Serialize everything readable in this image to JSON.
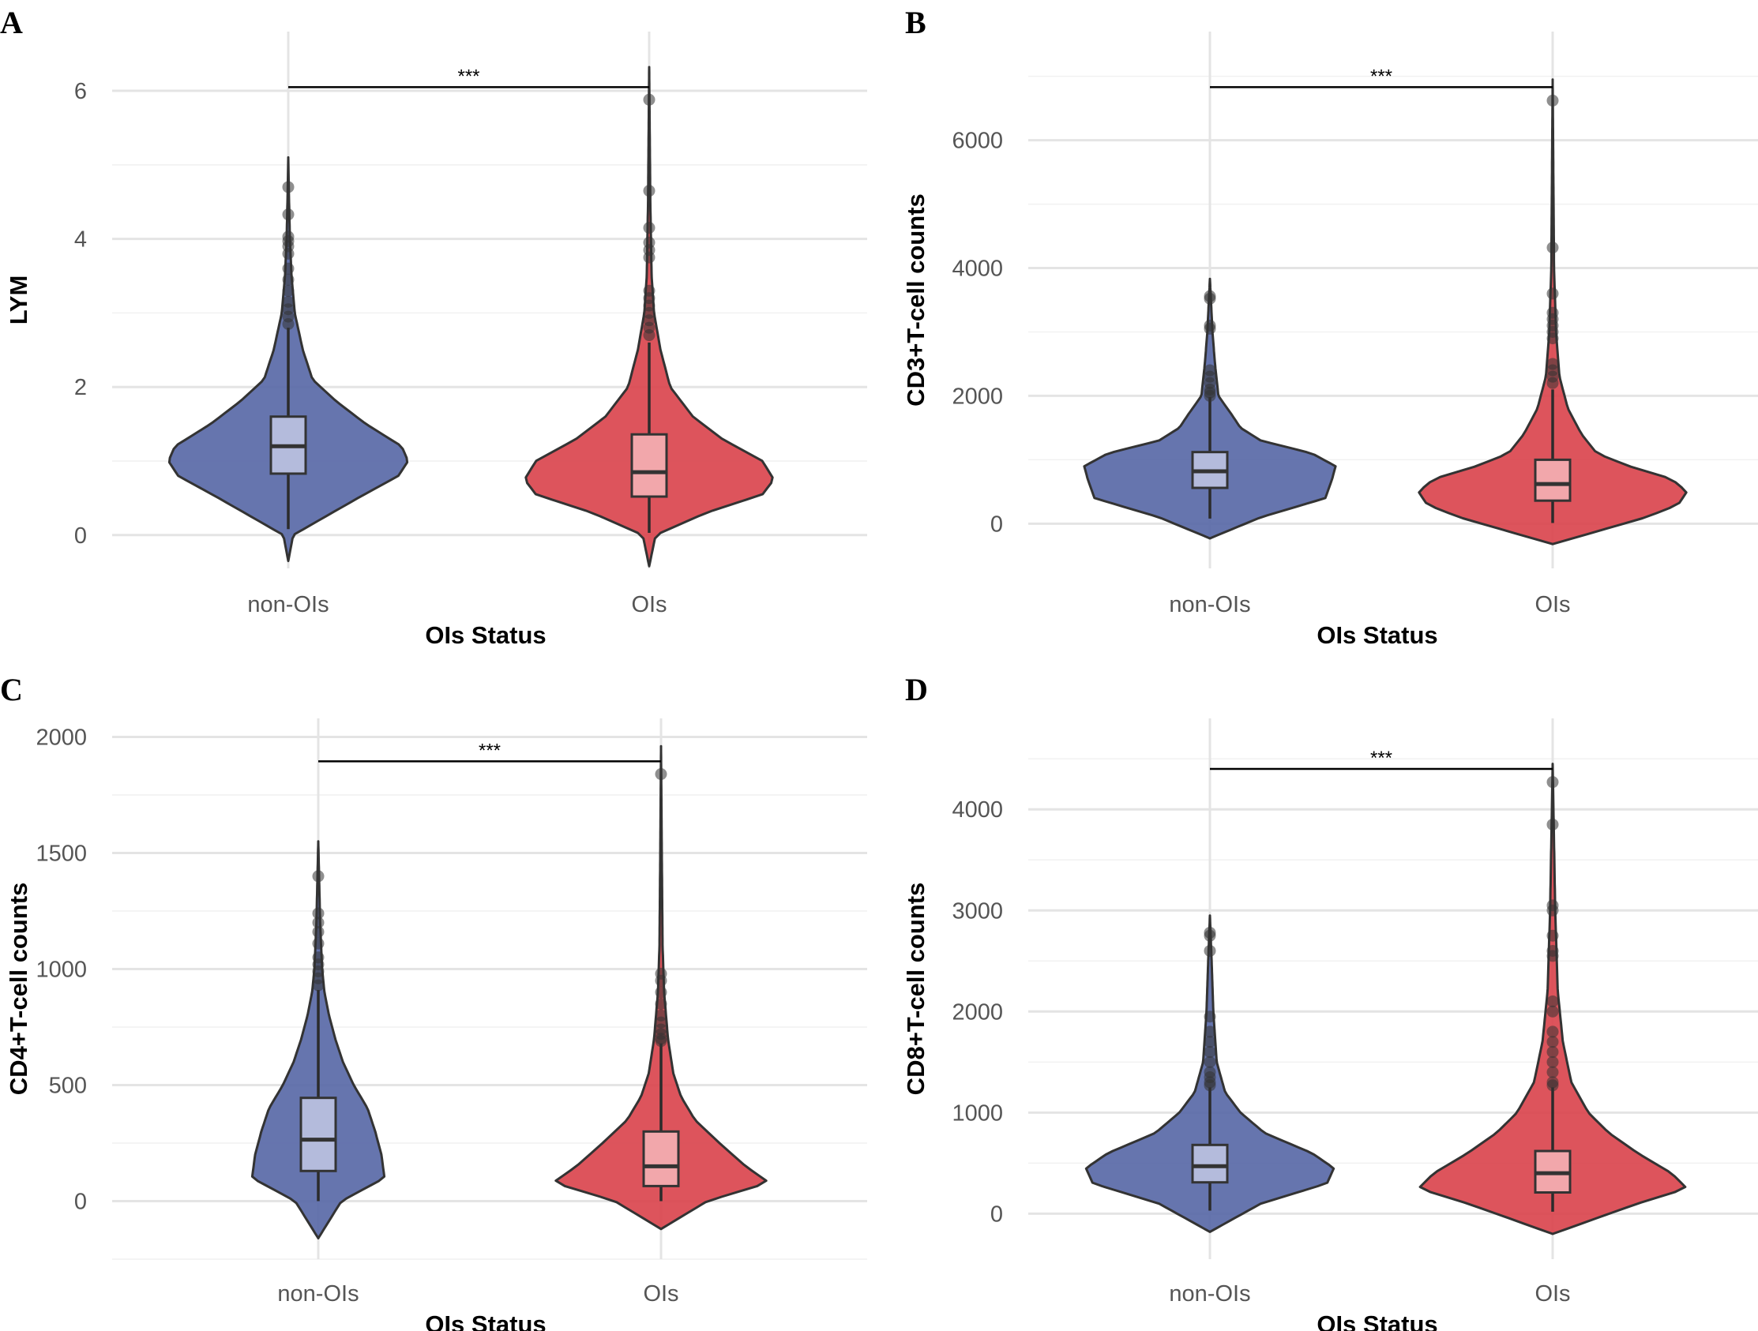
{
  "chart_data": [
    {
      "panel": "A",
      "type": "violin",
      "xlabel": "OIs Status",
      "ylabel": "LYM",
      "categories": [
        "non-OIs",
        "OIs"
      ],
      "yticks": [
        0,
        2,
        4,
        6
      ],
      "ylim": [
        -0.45,
        6.8
      ],
      "colors": [
        "#5566a5",
        "#d9414a"
      ],
      "box_colors": [
        "#b4bbdc",
        "#f2a7ab"
      ],
      "significance": {
        "label": "***",
        "y": 6.05
      },
      "groups": [
        {
          "name": "non-OIs",
          "min": 0.08,
          "q1": 0.83,
          "median": 1.2,
          "q3": 1.6,
          "whisker_high": 2.8,
          "outliers": [
            2.85,
            2.95,
            3.05,
            3.15,
            3.3,
            3.45,
            3.6,
            3.8,
            3.9,
            3.97,
            4.03,
            4.33,
            4.7
          ],
          "vmin": -0.35,
          "vmax": 5.1,
          "density": [
            [
              -0.35,
              0.0
            ],
            [
              0.0,
              0.03
            ],
            [
              0.5,
              0.43
            ],
            [
              0.8,
              0.68
            ],
            [
              1.0,
              0.74
            ],
            [
              1.2,
              0.7
            ],
            [
              1.5,
              0.48
            ],
            [
              1.8,
              0.3
            ],
            [
              2.1,
              0.15
            ],
            [
              2.5,
              0.09
            ],
            [
              3.0,
              0.04
            ],
            [
              3.5,
              0.02
            ],
            [
              4.0,
              0.01
            ],
            [
              4.5,
              0.005
            ],
            [
              5.1,
              0.0
            ]
          ]
        },
        {
          "name": "OIs",
          "min": 0.03,
          "q1": 0.52,
          "median": 0.85,
          "q3": 1.36,
          "whisker_high": 2.6,
          "outliers": [
            2.7,
            2.8,
            2.9,
            3.0,
            3.1,
            3.2,
            3.3,
            3.75,
            3.85,
            3.95,
            4.15,
            4.65,
            5.88
          ],
          "vmin": -0.42,
          "vmax": 6.32,
          "density": [
            [
              -0.42,
              0.0
            ],
            [
              0.0,
              0.04
            ],
            [
              0.3,
              0.35
            ],
            [
              0.55,
              0.7
            ],
            [
              0.75,
              0.77
            ],
            [
              1.0,
              0.7
            ],
            [
              1.3,
              0.45
            ],
            [
              1.6,
              0.27
            ],
            [
              2.0,
              0.13
            ],
            [
              2.5,
              0.07
            ],
            [
              3.0,
              0.03
            ],
            [
              3.5,
              0.015
            ],
            [
              4.5,
              0.007
            ],
            [
              6.32,
              0.0
            ]
          ]
        }
      ]
    },
    {
      "panel": "B",
      "type": "violin",
      "xlabel": "OIs Status",
      "ylabel": "CD3+T-cell counts",
      "categories": [
        "non-OIs",
        "OIs"
      ],
      "yticks": [
        0,
        2000,
        4000,
        6000
      ],
      "ylim": [
        -700,
        7700
      ],
      "colors": [
        "#5566a5",
        "#d9414a"
      ],
      "box_colors": [
        "#b4bbdc",
        "#f2a7ab"
      ],
      "significance": {
        "label": "***",
        "y": 6830
      },
      "groups": [
        {
          "name": "non-OIs",
          "min": 80,
          "q1": 560,
          "median": 820,
          "q3": 1120,
          "whisker_high": 1980,
          "outliers": [
            2000,
            2050,
            2100,
            2200,
            2300,
            2400,
            3050,
            3100,
            3520,
            3560
          ],
          "vmin": -230,
          "vmax": 3830,
          "density": [
            [
              -230,
              0.0
            ],
            [
              100,
              0.3
            ],
            [
              400,
              0.68
            ],
            [
              700,
              0.72
            ],
            [
              900,
              0.74
            ],
            [
              1100,
              0.6
            ],
            [
              1300,
              0.3
            ],
            [
              1500,
              0.18
            ],
            [
              1700,
              0.13
            ],
            [
              2000,
              0.05
            ],
            [
              2500,
              0.03
            ],
            [
              3000,
              0.015
            ],
            [
              3830,
              0.0
            ]
          ]
        },
        {
          "name": "OIs",
          "min": 10,
          "q1": 360,
          "median": 620,
          "q3": 1000,
          "whisker_high": 2100,
          "outliers": [
            2200,
            2300,
            2400,
            2500,
            2900,
            3000,
            3100,
            3200,
            3300,
            3600,
            4320,
            6620
          ],
          "vmin": -320,
          "vmax": 6950,
          "density": [
            [
              -320,
              0.0
            ],
            [
              100,
              0.55
            ],
            [
              300,
              0.74
            ],
            [
              500,
              0.79
            ],
            [
              700,
              0.7
            ],
            [
              900,
              0.45
            ],
            [
              1100,
              0.26
            ],
            [
              1400,
              0.17
            ],
            [
              1800,
              0.09
            ],
            [
              2300,
              0.04
            ],
            [
              3000,
              0.02
            ],
            [
              4000,
              0.008
            ],
            [
              6950,
              0.0
            ]
          ]
        }
      ]
    },
    {
      "panel": "C",
      "type": "violin",
      "xlabel": "OIs Status",
      "ylabel": "CD4+T-cell counts",
      "categories": [
        "non-OIs",
        "OIs"
      ],
      "yticks": [
        0,
        500,
        1000,
        1500,
        2000
      ],
      "ylim": [
        -250,
        2080
      ],
      "colors": [
        "#5566a5",
        "#d9414a"
      ],
      "box_colors": [
        "#b4bbdc",
        "#f2a7ab"
      ],
      "significance": {
        "label": "***",
        "y": 1895
      },
      "groups": [
        {
          "name": "non-OIs",
          "min": 0,
          "q1": 130,
          "median": 265,
          "q3": 445,
          "whisker_high": 910,
          "outliers": [
            930,
            960,
            990,
            1020,
            1050,
            1110,
            1160,
            1200,
            1240,
            1400
          ],
          "vmin": -160,
          "vmax": 1550,
          "density": [
            [
              -160,
              0.0
            ],
            [
              0,
              0.15
            ],
            [
              100,
              0.43
            ],
            [
              200,
              0.41
            ],
            [
              300,
              0.37
            ],
            [
              400,
              0.32
            ],
            [
              500,
              0.23
            ],
            [
              600,
              0.16
            ],
            [
              700,
              0.11
            ],
            [
              800,
              0.07
            ],
            [
              900,
              0.04
            ],
            [
              1000,
              0.025
            ],
            [
              1200,
              0.012
            ],
            [
              1550,
              0.0
            ]
          ]
        },
        {
          "name": "OIs",
          "min": 0,
          "q1": 65,
          "median": 150,
          "q3": 300,
          "whisker_high": 680,
          "outliers": [
            690,
            700,
            720,
            740,
            770,
            800,
            850,
            900,
            950,
            980,
            1840
          ],
          "vmin": -120,
          "vmax": 1960,
          "density": [
            [
              -120,
              0.0
            ],
            [
              0,
              0.3
            ],
            [
              80,
              0.7
            ],
            [
              150,
              0.55
            ],
            [
              250,
              0.38
            ],
            [
              350,
              0.22
            ],
            [
              450,
              0.13
            ],
            [
              550,
              0.08
            ],
            [
              700,
              0.045
            ],
            [
              900,
              0.02
            ],
            [
              1100,
              0.01
            ],
            [
              1500,
              0.005
            ],
            [
              1960,
              0.0
            ]
          ]
        }
      ]
    },
    {
      "panel": "D",
      "type": "violin",
      "xlabel": "OIs Status",
      "ylabel": "CD8+T-cell counts",
      "categories": [
        "non-OIs",
        "OIs"
      ],
      "yticks": [
        0,
        1000,
        2000,
        3000,
        4000
      ],
      "ylim": [
        -450,
        4900
      ],
      "colors": [
        "#5566a5",
        "#d9414a"
      ],
      "box_colors": [
        "#b4bbdc",
        "#f2a7ab"
      ],
      "significance": {
        "label": "***",
        "y": 4400
      },
      "groups": [
        {
          "name": "non-OIs",
          "min": 30,
          "q1": 310,
          "median": 470,
          "q3": 680,
          "whisker_high": 1250,
          "outliers": [
            1270,
            1300,
            1350,
            1400,
            1500,
            1600,
            1700,
            1800,
            1950,
            2600,
            2750,
            2780
          ],
          "vmin": -180,
          "vmax": 2950,
          "density": [
            [
              -180,
              0.0
            ],
            [
              100,
              0.3
            ],
            [
              300,
              0.69
            ],
            [
              450,
              0.73
            ],
            [
              600,
              0.6
            ],
            [
              800,
              0.32
            ],
            [
              1000,
              0.18
            ],
            [
              1200,
              0.09
            ],
            [
              1500,
              0.04
            ],
            [
              2000,
              0.02
            ],
            [
              2500,
              0.01
            ],
            [
              2950,
              0.0
            ]
          ]
        },
        {
          "name": "OIs",
          "min": 20,
          "q1": 210,
          "median": 400,
          "q3": 620,
          "whisker_high": 1250,
          "outliers": [
            1270,
            1300,
            1400,
            1500,
            1600,
            1700,
            1800,
            2000,
            2100,
            2550,
            2600,
            2750,
            3000,
            3050,
            3850,
            4270
          ],
          "vmin": -200,
          "vmax": 4450,
          "density": [
            [
              -200,
              0.0
            ],
            [
              100,
              0.5
            ],
            [
              250,
              0.79
            ],
            [
              400,
              0.7
            ],
            [
              600,
              0.5
            ],
            [
              800,
              0.33
            ],
            [
              1000,
              0.21
            ],
            [
              1300,
              0.11
            ],
            [
              1700,
              0.06
            ],
            [
              2200,
              0.03
            ],
            [
              3000,
              0.015
            ],
            [
              4450,
              0.0
            ]
          ]
        }
      ]
    }
  ]
}
